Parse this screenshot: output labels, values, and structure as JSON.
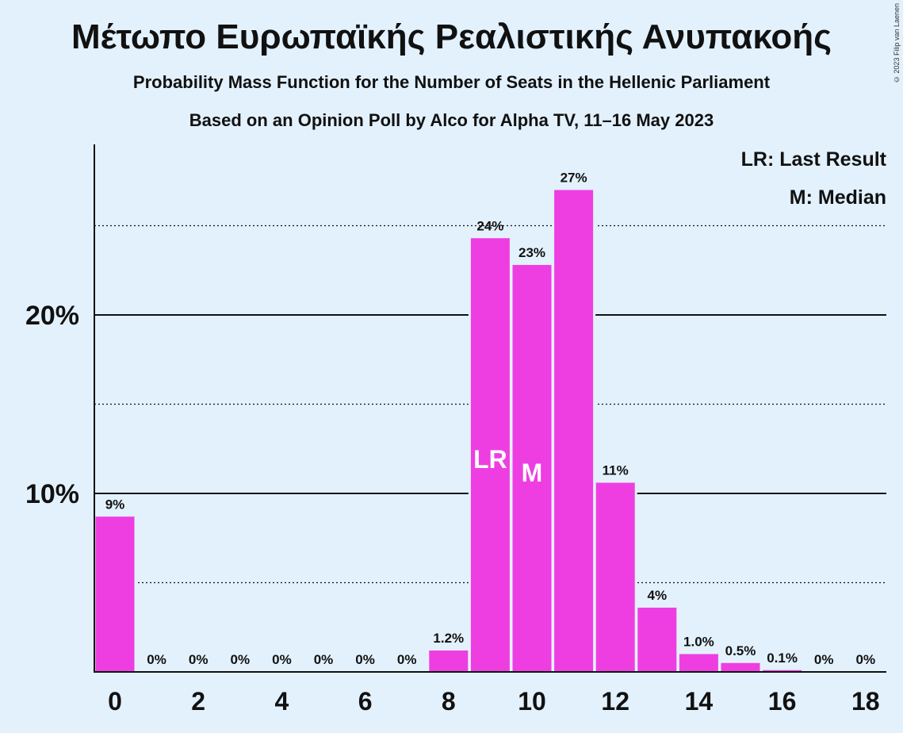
{
  "title": "Μέτωπο Ευρωπαϊκής Ρεαλιστικής Ανυπακοής",
  "subtitle": "Probability Mass Function for the Number of Seats in the Hellenic Parliament",
  "subtitle2": "Based on an Opinion Poll by Alco for Alpha TV, 11–16 May 2023",
  "copyright": "© 2023 Filip van Laenen",
  "legend": {
    "last_result": "LR: Last Result",
    "median": "M: Median"
  },
  "colors": {
    "bar": "#ee3ee2",
    "background": "#e3f1fd",
    "axis": "#111111"
  },
  "chart_data": {
    "type": "bar",
    "x": [
      0,
      1,
      2,
      3,
      4,
      5,
      6,
      7,
      8,
      9,
      10,
      11,
      12,
      13,
      14,
      15,
      16,
      17,
      18
    ],
    "values": [
      8.7,
      0,
      0,
      0,
      0,
      0,
      0,
      0,
      1.2,
      24.3,
      22.8,
      27.0,
      10.6,
      3.6,
      1.0,
      0.5,
      0.1,
      0,
      0
    ],
    "data_labels": [
      "9%",
      "0%",
      "0%",
      "0%",
      "0%",
      "0%",
      "0%",
      "0%",
      "1.2%",
      "24%",
      "23%",
      "27%",
      "11%",
      "4%",
      "1.0%",
      "0.5%",
      "0.1%",
      "0%",
      "0%"
    ],
    "x_tick_labels": [
      "0",
      "2",
      "4",
      "6",
      "8",
      "10",
      "12",
      "14",
      "16",
      "18"
    ],
    "y_tick_labels": [
      "10%",
      "20%"
    ],
    "ylim": [
      0,
      29.5
    ],
    "gridlines_solid": [
      10,
      20
    ],
    "gridlines_dotted": [
      5,
      15,
      25
    ],
    "last_result_seat": 9,
    "last_result_label": "LR",
    "median_seat": 10,
    "median_label": "M",
    "legend_position": "top-right"
  }
}
